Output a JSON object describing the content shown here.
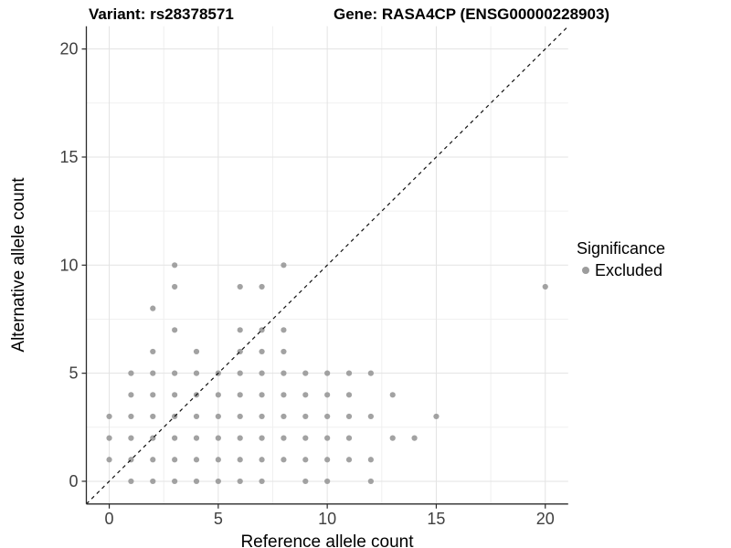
{
  "titles": {
    "left": "Variant: rs28378571",
    "right": "Gene: RASA4CP (ENSG00000228903)"
  },
  "legend": {
    "title": "Significance",
    "items": [
      {
        "label": "Excluded",
        "color": "#9c9c9c"
      }
    ]
  },
  "chart_data": {
    "type": "scatter",
    "xlabel": "Reference allele count",
    "ylabel": "Alternative allele count",
    "xlim": [
      -1.05,
      21.05
    ],
    "ylim": [
      -1.05,
      21.05
    ],
    "xticks": [
      0,
      5,
      10,
      15,
      20
    ],
    "yticks": [
      0,
      5,
      10,
      15,
      20
    ],
    "xminor": [
      2.5,
      7.5,
      12.5,
      17.5
    ],
    "yminor": [
      2.5,
      7.5,
      12.5,
      17.5
    ],
    "grid": "major and minor, light grey on white",
    "legend_position": "right",
    "identity_line": {
      "type": "abline y=x",
      "style": "dashed",
      "color": "#111111"
    },
    "series": [
      {
        "name": "Excluded",
        "color": "#989898",
        "point_radius": 3.1,
        "points": [
          [
            1,
            0
          ],
          [
            2,
            0
          ],
          [
            3,
            0
          ],
          [
            4,
            0
          ],
          [
            5,
            0
          ],
          [
            6,
            0
          ],
          [
            7,
            0
          ],
          [
            9,
            0
          ],
          [
            10,
            0
          ],
          [
            12,
            0
          ],
          [
            0,
            1
          ],
          [
            1,
            1
          ],
          [
            2,
            1
          ],
          [
            3,
            1
          ],
          [
            4,
            1
          ],
          [
            5,
            1
          ],
          [
            6,
            1
          ],
          [
            7,
            1
          ],
          [
            8,
            1
          ],
          [
            9,
            1
          ],
          [
            10,
            1
          ],
          [
            11,
            1
          ],
          [
            12,
            1
          ],
          [
            0,
            2
          ],
          [
            1,
            2
          ],
          [
            2,
            2
          ],
          [
            3,
            2
          ],
          [
            4,
            2
          ],
          [
            5,
            2
          ],
          [
            6,
            2
          ],
          [
            7,
            2
          ],
          [
            8,
            2
          ],
          [
            9,
            2
          ],
          [
            10,
            2
          ],
          [
            11,
            2
          ],
          [
            13,
            2
          ],
          [
            14,
            2
          ],
          [
            0,
            3
          ],
          [
            1,
            3
          ],
          [
            2,
            3
          ],
          [
            3,
            3
          ],
          [
            4,
            3
          ],
          [
            5,
            3
          ],
          [
            6,
            3
          ],
          [
            7,
            3
          ],
          [
            8,
            3
          ],
          [
            9,
            3
          ],
          [
            10,
            3
          ],
          [
            11,
            3
          ],
          [
            12,
            3
          ],
          [
            15,
            3
          ],
          [
            1,
            4
          ],
          [
            2,
            4
          ],
          [
            3,
            4
          ],
          [
            4,
            4
          ],
          [
            5,
            4
          ],
          [
            6,
            4
          ],
          [
            7,
            4
          ],
          [
            8,
            4
          ],
          [
            9,
            4
          ],
          [
            10,
            4
          ],
          [
            11,
            4
          ],
          [
            13,
            4
          ],
          [
            1,
            5
          ],
          [
            2,
            5
          ],
          [
            3,
            5
          ],
          [
            4,
            5
          ],
          [
            5,
            5
          ],
          [
            6,
            5
          ],
          [
            7,
            5
          ],
          [
            8,
            5
          ],
          [
            9,
            5
          ],
          [
            10,
            5
          ],
          [
            11,
            5
          ],
          [
            12,
            5
          ],
          [
            2,
            6
          ],
          [
            4,
            6
          ],
          [
            6,
            6
          ],
          [
            7,
            6
          ],
          [
            8,
            6
          ],
          [
            3,
            7
          ],
          [
            6,
            7
          ],
          [
            7,
            7
          ],
          [
            8,
            7
          ],
          [
            2,
            8
          ],
          [
            3,
            9
          ],
          [
            6,
            9
          ],
          [
            7,
            9
          ],
          [
            20,
            9
          ],
          [
            3,
            10
          ],
          [
            8,
            10
          ]
        ]
      }
    ],
    "style": {
      "grid_major_color": "#e3e3e3",
      "grid_minor_color": "#f0f0f0",
      "axis_line_color": "#2b2b2b",
      "tick_label_color": "#404040",
      "tick_label_size": 18
    }
  }
}
